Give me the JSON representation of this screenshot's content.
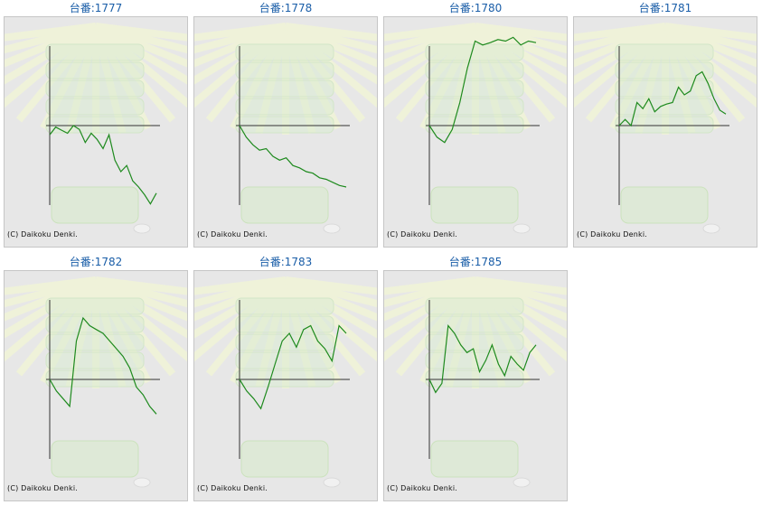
{
  "copyright": "(C) Daikoku Denki.",
  "colors": {
    "title": "#1a5ea8",
    "line": "#1e8a1e",
    "axis": "#333333",
    "panel_bg": "#e7e7e7"
  },
  "machines": [
    {
      "title": "台番:1777",
      "chart_data": {
        "type": "line",
        "y_rel": [
          0.12,
          0.02,
          0.06,
          0.1,
          0.0,
          0.05,
          0.22,
          0.1,
          0.18,
          0.3,
          0.12,
          0.45,
          0.6,
          0.52,
          0.72,
          0.8,
          0.9,
          1.02,
          0.88
        ]
      }
    },
    {
      "title": "台番:1778",
      "chart_data": {
        "type": "line",
        "y_rel": [
          0.0,
          0.15,
          0.25,
          0.32,
          0.3,
          0.4,
          0.45,
          0.42,
          0.52,
          0.55,
          0.6,
          0.62,
          0.68,
          0.7,
          0.74,
          0.78,
          0.8
        ]
      }
    },
    {
      "title": "台番:1780",
      "chart_data": {
        "type": "line",
        "y_rel": [
          0.0,
          0.15,
          0.22,
          0.05,
          -0.3,
          -0.75,
          -1.1,
          -1.05,
          -1.08,
          -1.12,
          -1.1,
          -1.15,
          -1.05,
          -1.1,
          -1.08
        ]
      }
    },
    {
      "title": "台番:1781",
      "chart_data": {
        "type": "line",
        "y_rel": [
          0.0,
          -0.08,
          0.0,
          -0.3,
          -0.22,
          -0.35,
          -0.18,
          -0.25,
          -0.28,
          -0.3,
          -0.5,
          -0.4,
          -0.45,
          -0.65,
          -0.7,
          -0.55,
          -0.35,
          -0.2,
          -0.15
        ]
      }
    },
    {
      "title": "台番:1782",
      "chart_data": {
        "type": "line",
        "y_rel": [
          0.0,
          0.15,
          0.25,
          0.35,
          -0.5,
          -0.8,
          -0.7,
          -0.65,
          -0.6,
          -0.5,
          -0.4,
          -0.3,
          -0.15,
          0.1,
          0.2,
          0.35,
          0.45
        ]
      }
    },
    {
      "title": "台番:1783",
      "chart_data": {
        "type": "line",
        "y_rel": [
          0.0,
          0.15,
          0.25,
          0.38,
          0.1,
          -0.2,
          -0.5,
          -0.6,
          -0.42,
          -0.65,
          -0.7,
          -0.5,
          -0.4,
          -0.24,
          -0.7,
          -0.6
        ]
      }
    },
    {
      "title": "台番:1785",
      "chart_data": {
        "type": "line",
        "y_rel": [
          0.0,
          0.17,
          0.05,
          -0.7,
          -0.6,
          -0.45,
          -0.35,
          -0.4,
          -0.1,
          -0.25,
          -0.45,
          -0.2,
          -0.05,
          -0.3,
          -0.2,
          -0.12,
          -0.35,
          -0.45
        ]
      }
    }
  ]
}
